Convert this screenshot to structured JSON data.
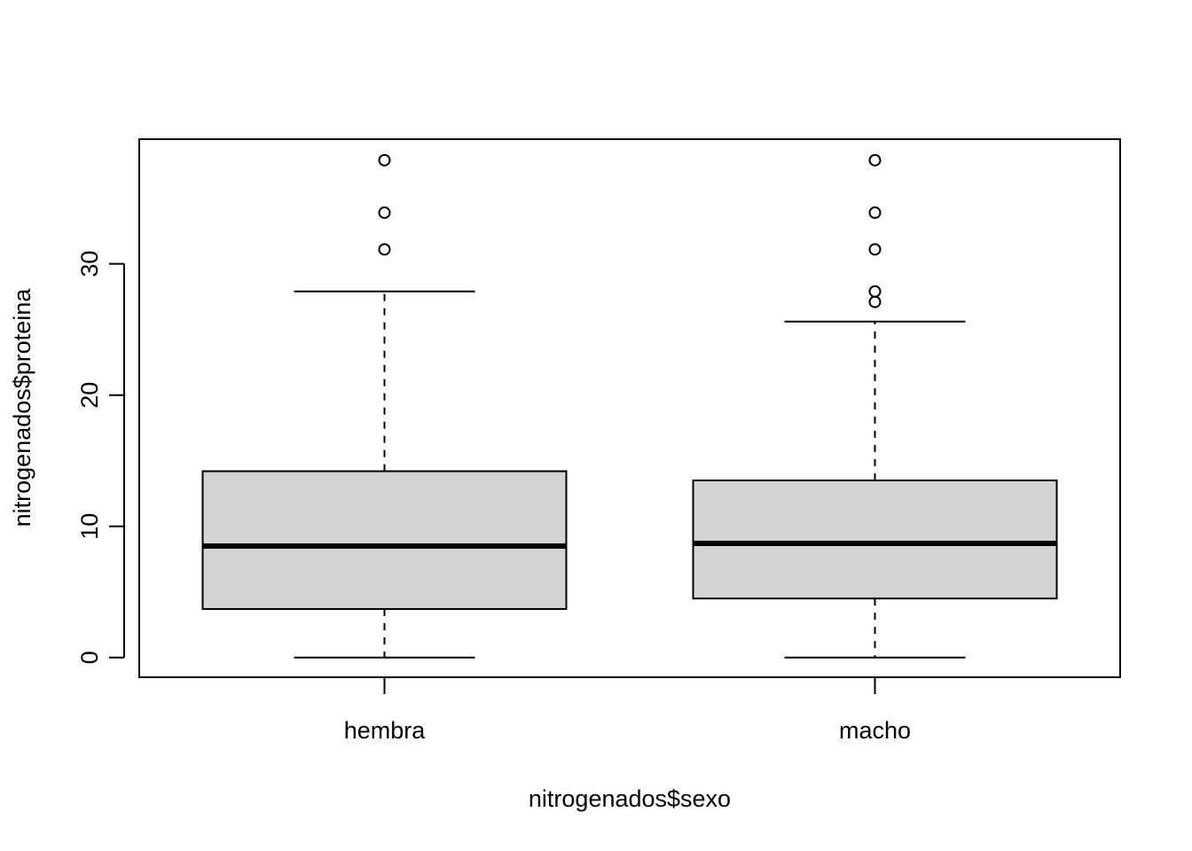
{
  "chart_data": {
    "type": "boxplot",
    "xlabel": "nitrogenados$sexo",
    "ylabel": "nitrogenados$proteina",
    "ylim": [
      -1.5,
      39.5
    ],
    "yticks": [
      "0",
      "10",
      "20",
      "30"
    ],
    "yticks_values": [
      0,
      10,
      20,
      30
    ],
    "categories": [
      "hembra",
      "macho"
    ],
    "box_fill": "#d3d3d3",
    "boxes": [
      {
        "category": "hembra",
        "whisker_low": 0.0,
        "q1": 3.7,
        "median": 8.5,
        "q3": 14.2,
        "whisker_high": 27.9,
        "outliers": [
          31.1,
          33.9,
          37.9
        ]
      },
      {
        "category": "macho",
        "whisker_low": 0.0,
        "q1": 4.5,
        "median": 8.7,
        "q3": 13.5,
        "whisker_high": 25.6,
        "outliers": [
          27.1,
          27.9,
          31.1,
          33.9,
          37.9
        ]
      }
    ]
  }
}
